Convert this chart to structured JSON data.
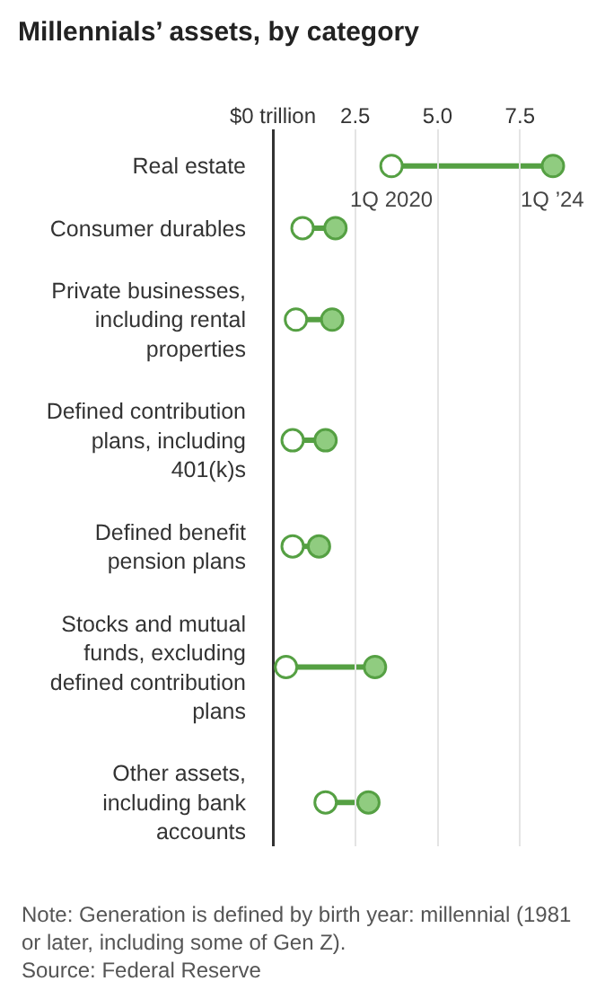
{
  "chart_data": {
    "type": "scatter",
    "orientation": "horizontal",
    "title": "Millennials’ assets, by category",
    "categories": [
      "Real estate",
      "Consumer durables",
      "Private businesses, including rental properties",
      "Defined contribution plans, including 401(k)s",
      "Defined benefit pension plans",
      "Stocks and mutual funds, excluding defined contribution plans",
      "Other assets, including bank accounts"
    ],
    "series": [
      {
        "name": "1Q 2020",
        "color": "#ffffff",
        "values": [
          3.6,
          0.9,
          0.7,
          0.6,
          0.6,
          0.4,
          1.6
        ]
      },
      {
        "name": "1Q ’24",
        "color": "#90cc80",
        "values": [
          8.5,
          1.9,
          1.8,
          1.6,
          1.4,
          3.1,
          2.9
        ]
      }
    ],
    "xlim": [
      0,
      8.5
    ],
    "xticks": [
      {
        "value": 0,
        "label": "$0 trillion"
      },
      2.5,
      {
        "value": 5,
        "label": "5.0"
      },
      7.5
    ],
    "grid": "x",
    "marker": "circle",
    "annotations": [
      "Note: Generation is defined by birth year: millennial (1981 or later, including some of Gen Z).",
      "Source: Federal Reserve"
    ]
  }
}
